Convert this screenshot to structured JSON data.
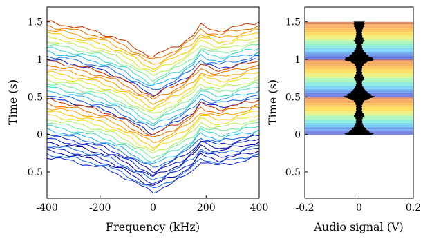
{
  "chart_data": [
    {
      "type": "line",
      "xlabel": "Frequency (kHz)",
      "ylabel": "Time (s)",
      "xlim": [
        -400,
        400
      ],
      "ylim": [
        -0.85,
        1.7
      ],
      "xticks": [
        -400,
        -200,
        0,
        200,
        400
      ],
      "yticks": [
        -0.5,
        0,
        0.5,
        1,
        1.5
      ],
      "tick_labels_x": [
        "-400",
        "-200",
        "0",
        "200",
        "400"
      ],
      "tick_labels_y": [
        "-0.5",
        "0",
        "0.5",
        "1",
        "1.5"
      ],
      "colormap": "jet",
      "grid": false,
      "x": [
        -400,
        -300,
        -200,
        -150,
        -100,
        -50,
        0,
        50,
        100,
        150,
        180,
        200,
        250,
        300,
        400
      ],
      "profile_offset": [
        0,
        -0.06,
        -0.14,
        -0.2,
        -0.28,
        -0.38,
        -0.47,
        -0.38,
        -0.3,
        -0.18,
        -0.05,
        -0.08,
        -0.12,
        -0.08,
        0
      ],
      "series": [
        {
          "baseline": 1.5,
          "color": "#c83c00"
        },
        {
          "baseline": 1.45,
          "color": "#f07800"
        },
        {
          "baseline": 1.4,
          "color": "#ffa000"
        },
        {
          "baseline": 1.35,
          "color": "#ffc800"
        },
        {
          "baseline": 1.3,
          "color": "#e6e632"
        },
        {
          "baseline": 1.25,
          "color": "#b4f064"
        },
        {
          "baseline": 1.2,
          "color": "#78f096"
        },
        {
          "baseline": 1.15,
          "color": "#46dcc8"
        },
        {
          "baseline": 1.1,
          "color": "#28b4f0"
        },
        {
          "baseline": 1.05,
          "color": "#1e6ee6"
        },
        {
          "baseline": 1.0,
          "color": "#1428c8"
        },
        {
          "baseline": 0.98,
          "color": "#c83c00"
        },
        {
          "baseline": 0.93,
          "color": "#f07800"
        },
        {
          "baseline": 0.88,
          "color": "#ffa000"
        },
        {
          "baseline": 0.83,
          "color": "#ffc800"
        },
        {
          "baseline": 0.78,
          "color": "#e6e632"
        },
        {
          "baseline": 0.73,
          "color": "#b4f064"
        },
        {
          "baseline": 0.68,
          "color": "#78f096"
        },
        {
          "baseline": 0.63,
          "color": "#46dcc8"
        },
        {
          "baseline": 0.58,
          "color": "#28b4f0"
        },
        {
          "baseline": 0.53,
          "color": "#1e6ee6"
        },
        {
          "baseline": 0.48,
          "color": "#1428c8"
        },
        {
          "baseline": 0.46,
          "color": "#c83c00"
        },
        {
          "baseline": 0.41,
          "color": "#f07800"
        },
        {
          "baseline": 0.36,
          "color": "#ffa000"
        },
        {
          "baseline": 0.31,
          "color": "#ffc800"
        },
        {
          "baseline": 0.26,
          "color": "#e6e632"
        },
        {
          "baseline": 0.21,
          "color": "#b4f064"
        },
        {
          "baseline": 0.16,
          "color": "#78f096"
        },
        {
          "baseline": 0.11,
          "color": "#46dcc8"
        },
        {
          "baseline": 0.06,
          "color": "#28b4f0"
        },
        {
          "baseline": 0.02,
          "color": "#1e6ee6"
        },
        {
          "baseline": -0.02,
          "color": "#1428c8"
        },
        {
          "baseline": -0.06,
          "color": "#1428c8"
        },
        {
          "baseline": -0.1,
          "color": "#0a0aa0"
        },
        {
          "baseline": -0.14,
          "color": "#1e6ee6"
        },
        {
          "baseline": -0.18,
          "color": "#1428c8"
        },
        {
          "baseline": -0.22,
          "color": "#0a0aa0"
        },
        {
          "baseline": -0.26,
          "color": "#1e6ee6"
        },
        {
          "baseline": -0.3,
          "color": "#1428c8"
        }
      ]
    },
    {
      "type": "line",
      "xlabel": "Audio signal (V)",
      "ylabel": "Time (s)",
      "xlim": [
        -0.2,
        0.2
      ],
      "ylim": [
        -0.85,
        1.7
      ],
      "xticks": [
        -0.2,
        0,
        0.2
      ],
      "yticks": [
        -0.5,
        0,
        0.5,
        1,
        1.5
      ],
      "tick_labels_x": [
        "-0.2",
        "0",
        "0.2"
      ],
      "tick_labels_y": [
        "-0.5",
        "0",
        "0.5",
        "1",
        "1.5"
      ],
      "background_bands": {
        "from": 0,
        "to": 1.5,
        "colormap": "jet",
        "repeat_period": 0.5
      },
      "signal": {
        "color": "#000000",
        "time": [
          0.0,
          0.05,
          0.1,
          0.15,
          0.2,
          0.25,
          0.3,
          0.35,
          0.4,
          0.45,
          0.5,
          0.55,
          0.6,
          0.65,
          0.7,
          0.75,
          0.8,
          0.85,
          0.9,
          0.95,
          1.0,
          1.05,
          1.1,
          1.15,
          1.2,
          1.25,
          1.3,
          1.35,
          1.4,
          1.45,
          1.5
        ],
        "amplitude": [
          0.06,
          0.035,
          0.02,
          0.012,
          0.01,
          0.02,
          0.012,
          0.01,
          0.012,
          0.02,
          0.06,
          0.035,
          0.02,
          0.012,
          0.01,
          0.02,
          0.012,
          0.01,
          0.012,
          0.02,
          0.06,
          0.035,
          0.02,
          0.012,
          0.01,
          0.02,
          0.012,
          0.01,
          0.012,
          0.02,
          0.02
        ]
      }
    }
  ]
}
